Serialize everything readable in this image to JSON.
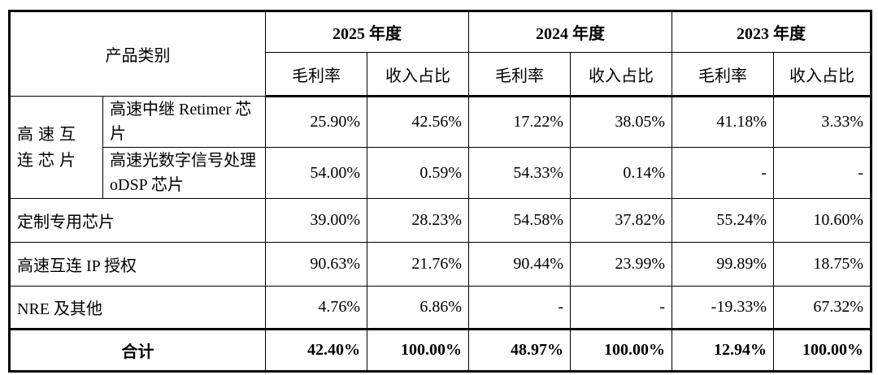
{
  "table": {
    "header": {
      "category": "产品类别",
      "years": [
        "2025 年度",
        "2024 年度",
        "2023 年度"
      ],
      "subheaders": [
        "毛利率",
        "收入占比",
        "毛利率",
        "收入占比",
        "毛利率",
        "收入占比"
      ]
    },
    "group": "高速互连芯片",
    "rows": [
      {
        "label": "高速中继 Retimer 芯片",
        "cells": [
          "25.90%",
          "42.56%",
          "17.22%",
          "38.05%",
          "41.18%",
          "3.33%"
        ]
      },
      {
        "label": "高速光数字信号处理 oDSP 芯片",
        "cells": [
          "54.00%",
          "0.59%",
          "54.33%",
          "0.14%",
          "-",
          "-"
        ]
      },
      {
        "label": "定制专用芯片",
        "cells": [
          "39.00%",
          "28.23%",
          "54.58%",
          "37.82%",
          "55.24%",
          "10.60%"
        ]
      },
      {
        "label": "高速互连 IP 授权",
        "cells": [
          "90.63%",
          "21.76%",
          "90.44%",
          "23.99%",
          "99.89%",
          "18.75%"
        ]
      },
      {
        "label": "NRE 及其他",
        "cells": [
          "4.76%",
          "6.86%",
          "-",
          "-",
          "-19.33%",
          "67.32%"
        ]
      }
    ],
    "total": {
      "label": "合计",
      "cells": [
        "42.40%",
        "100.00%",
        "48.97%",
        "100.00%",
        "12.94%",
        "100.00%"
      ]
    }
  }
}
